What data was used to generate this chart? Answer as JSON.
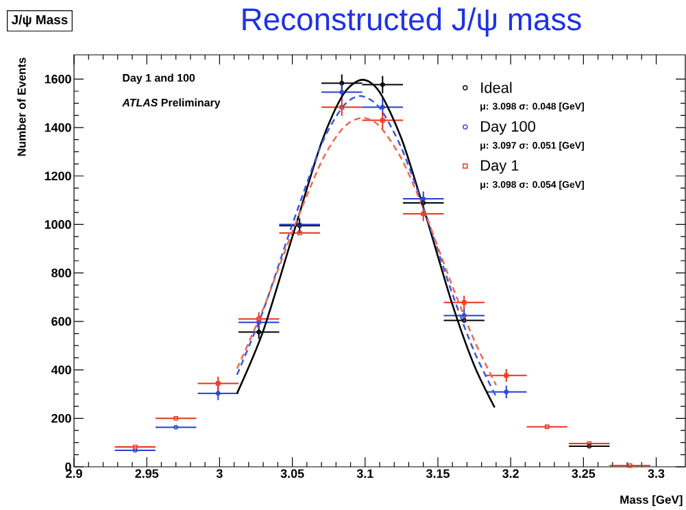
{
  "chart_data": {
    "type": "scatter",
    "title": "Reconstructed J/ψ mass",
    "xlabel": "Mass [GeV]",
    "ylabel": "Number of Events",
    "annotations": [
      "J/ψ Mass",
      "Day 1 and 100",
      "*ATLAS* Preliminary",
      "μ: 3.098 σ: 0.048 [GeV]",
      "μ: 3.097 σ: 0.051 [GeV]",
      "μ: 3.098 σ: 0.054 [GeV]"
    ],
    "xlim": [
      2.9,
      3.32
    ],
    "ylim": [
      0,
      1700
    ],
    "xticks": [
      2.9,
      2.95,
      3,
      3.05,
      3.1,
      3.15,
      3.2,
      3.25,
      3.3
    ],
    "yticks": [
      0,
      200,
      400,
      600,
      800,
      1000,
      1200,
      1400,
      1600
    ],
    "legend": "top right",
    "grid": false,
    "series": [
      {
        "name": "Ideal",
        "marker": "circle",
        "color": "#000000",
        "x": [
          3.027,
          3.055,
          3.084,
          3.112,
          3.14,
          3.168,
          3.254
        ],
        "values": [
          556,
          995,
          1583,
          1577,
          1089,
          604,
          85
        ],
        "errors": [
          28,
          30,
          36,
          36,
          null,
          null,
          null
        ],
        "xerrors": [
          0.014,
          0.014,
          0.014,
          0.014,
          0.014,
          0.014,
          0.014
        ]
      },
      {
        "name": "Day 100",
        "marker": "circle",
        "color": "#1f3fd6",
        "x": [
          2.942,
          2.97,
          2.999,
          3.027,
          3.055,
          3.084,
          3.112,
          3.14,
          3.168,
          3.197
        ],
        "values": [
          68,
          163,
          303,
          596,
          1000,
          1546,
          1484,
          1106,
          624,
          309
        ],
        "errors": [
          null,
          null,
          28,
          28,
          null,
          36,
          36,
          30,
          28,
          26
        ],
        "xerrors": [
          0.014,
          0.014,
          0.014,
          0.014,
          0.014,
          0.014,
          0.014,
          0.014,
          0.014,
          0.014
        ]
      },
      {
        "name": "Day 1",
        "marker": "square",
        "color": "#e8301a",
        "x": [
          2.942,
          2.97,
          2.999,
          3.027,
          3.055,
          3.084,
          3.112,
          3.14,
          3.168,
          3.197,
          3.225,
          3.254,
          3.282
        ],
        "values": [
          82,
          200,
          344,
          610,
          965,
          1484,
          1430,
          1044,
          678,
          377,
          165,
          96,
          5
        ],
        "errors": [
          null,
          null,
          28,
          28,
          null,
          36,
          36,
          30,
          28,
          26,
          null,
          null,
          null
        ],
        "xerrors": [
          0.014,
          0.014,
          0.014,
          0.014,
          0.014,
          0.014,
          0.014,
          0.014,
          0.014,
          0.014,
          0.014,
          0.014,
          0.014
        ]
      },
      {
        "type": "line",
        "line_style": "solid",
        "color": "#000000",
        "x": [
          3.012,
          3.03,
          3.05,
          3.07,
          3.085,
          3.098,
          3.11,
          3.125,
          3.14,
          3.16,
          3.175,
          3.189
        ],
        "values": [
          303,
          561,
          949,
          1338,
          1537,
          1597,
          1546,
          1354,
          1071,
          669,
          418,
          245
        ]
      },
      {
        "type": "line",
        "line_style": "dashed",
        "color": "#3a5ae0",
        "x": [
          3.012,
          3.03,
          3.05,
          3.07,
          3.085,
          3.097,
          3.11,
          3.125,
          3.14,
          3.16,
          3.175,
          3.19
        ],
        "values": [
          380,
          645,
          1000,
          1330,
          1488,
          1530,
          1481,
          1315,
          1072,
          713,
          475,
          290
        ]
      },
      {
        "type": "line",
        "line_style": "dashed",
        "color": "#f06a50",
        "x": [
          3.012,
          3.03,
          3.05,
          3.07,
          3.085,
          3.098,
          3.11,
          3.125,
          3.14,
          3.16,
          3.175,
          3.19
        ],
        "values": [
          405,
          652,
          970,
          1259,
          1399,
          1440,
          1405,
          1271,
          1065,
          745,
          521,
          337
        ]
      }
    ]
  }
}
